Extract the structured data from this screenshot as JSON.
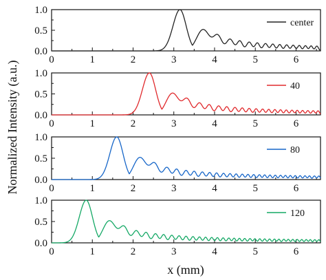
{
  "figure": {
    "xlabel": "x (mm)",
    "ylabel": "Normalized Intensity (a.u.)"
  },
  "chart_data": [
    {
      "type": "line",
      "title": "",
      "xlabel": "",
      "ylabel": "",
      "xlim": [
        0,
        6.6
      ],
      "ylim": [
        0,
        1.0
      ],
      "x_ticks": [
        "0",
        "1",
        "2",
        "3",
        "4",
        "5",
        "6"
      ],
      "y_ticks": [
        "0.0",
        "0.5",
        "1.0"
      ],
      "legend": "top-right",
      "grid": false,
      "series": [
        {
          "name": "center",
          "color": "#222222",
          "peak_x": 3.15,
          "peak_y": 1.0,
          "secondary_peaks_x": [
            3.72,
            4.08,
            4.38,
            4.62,
            4.85,
            5.05,
            5.25,
            5.43,
            5.6,
            5.77,
            5.93,
            6.08,
            6.23,
            6.37,
            6.51
          ],
          "tail_level": 0.1
        }
      ]
    },
    {
      "type": "line",
      "title": "",
      "xlabel": "",
      "ylabel": "",
      "xlim": [
        0,
        6.6
      ],
      "ylim": [
        0,
        1.0
      ],
      "x_ticks": [
        "0",
        "1",
        "2",
        "3",
        "4",
        "5",
        "6"
      ],
      "y_ticks": [
        "0.0",
        "0.5",
        "1.0"
      ],
      "legend": "top-right",
      "grid": false,
      "series": [
        {
          "name": "40",
          "color": "#e0282b",
          "peak_x": 2.4,
          "peak_y": 1.0,
          "secondary_peaks_x": [
            2.97,
            3.33,
            3.63,
            3.87,
            4.1,
            4.3,
            4.5,
            4.68,
            4.85,
            5.02,
            5.18,
            5.33,
            5.48,
            5.62,
            5.76,
            5.9,
            6.03,
            6.16,
            6.29,
            6.42,
            6.54
          ],
          "tail_level": 0.08
        }
      ]
    },
    {
      "type": "line",
      "title": "",
      "xlabel": "",
      "ylabel": "",
      "xlim": [
        0,
        6.6
      ],
      "ylim": [
        0,
        1.0
      ],
      "x_ticks": [
        "0",
        "1",
        "2",
        "3",
        "4",
        "5",
        "6"
      ],
      "y_ticks": [
        "0.0",
        "0.5",
        "1.0"
      ],
      "legend": "top-right",
      "grid": false,
      "series": [
        {
          "name": "80",
          "color": "#1565c8",
          "peak_x": 1.6,
          "peak_y": 1.0,
          "secondary_peaks_x": [
            2.17,
            2.53,
            2.83,
            3.07,
            3.3,
            3.5,
            3.7,
            3.88,
            4.05,
            4.22,
            4.38,
            4.53,
            4.68,
            4.82,
            4.96,
            5.1,
            5.23,
            5.36,
            5.49,
            5.62,
            5.74,
            5.86,
            5.98,
            6.1,
            6.22,
            6.33,
            6.45,
            6.56
          ],
          "tail_level": 0.07
        }
      ]
    },
    {
      "type": "line",
      "title": "",
      "xlabel": "",
      "ylabel": "",
      "xlim": [
        0,
        6.6
      ],
      "ylim": [
        0,
        1.0
      ],
      "x_ticks": [
        "0",
        "1",
        "2",
        "3",
        "4",
        "5",
        "6"
      ],
      "y_ticks": [
        "0.0",
        "0.5",
        "1.0"
      ],
      "legend": "top-right",
      "grid": false,
      "series": [
        {
          "name": "120",
          "color": "#14a865",
          "peak_x": 0.85,
          "peak_y": 1.0,
          "secondary_peaks_x": [
            1.42,
            1.78,
            2.08,
            2.32,
            2.55,
            2.75,
            2.95,
            3.13,
            3.3,
            3.47,
            3.63,
            3.78,
            3.93,
            4.07,
            4.21,
            4.35,
            4.48,
            4.61,
            4.74,
            4.87,
            4.99,
            5.11,
            5.23,
            5.35,
            5.47,
            5.58,
            5.7,
            5.81,
            5.92,
            6.03,
            6.14,
            6.25,
            6.35,
            6.46,
            6.56
          ],
          "tail_level": 0.06
        }
      ]
    }
  ]
}
